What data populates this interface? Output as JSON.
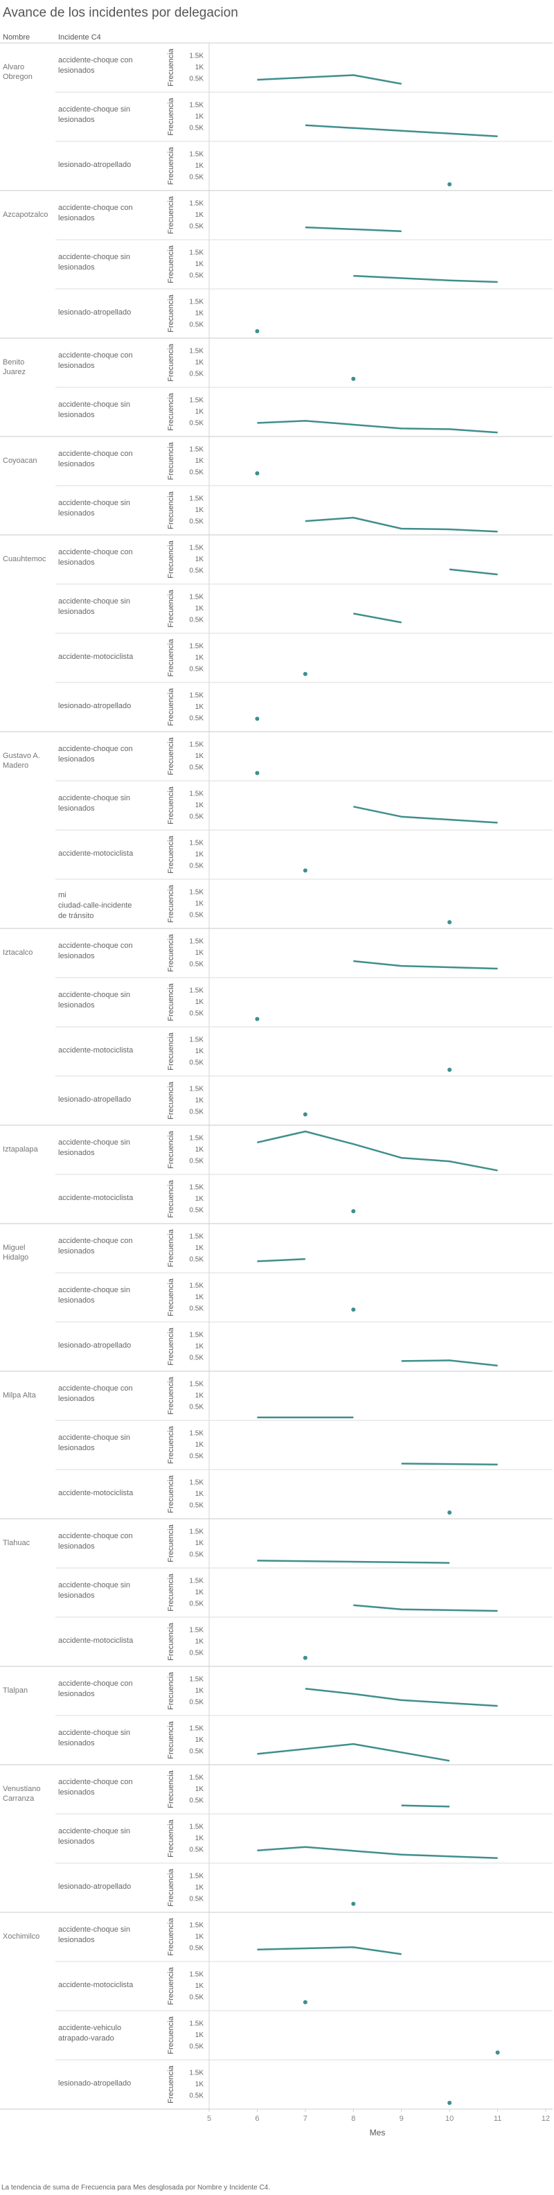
{
  "chart_data": {
    "type": "line",
    "title": "Avance de los incidentes por delegacion",
    "footnote": "La tendencia de suma de Frecuencia para Mes desglosada por Nombre y Incidente C4.",
    "column_headers": [
      "Nombre",
      "Incidente C4"
    ],
    "ylabel": "Frecuencia",
    "xlabel": "Mes",
    "x_ticks": [
      5,
      6,
      7,
      8,
      9,
      10,
      11,
      12
    ],
    "y_tick_labels": [
      "1.5K",
      "1K",
      "0.5K"
    ],
    "xlim": [
      5,
      12
    ],
    "ylim": [
      0,
      1900
    ],
    "line_color": "#3f8f8c",
    "groups": [
      {
        "name": "Alvaro Obregon",
        "rows": [
          {
            "incident": "accidente-choque con lesionados",
            "points": [
              [
                6,
                420
              ],
              [
                8,
                620
              ],
              [
                9,
                240
              ]
            ]
          },
          {
            "incident": "accidente-choque sin lesionados",
            "points": [
              [
                7,
                580
              ],
              [
                11,
                100
              ]
            ]
          },
          {
            "incident": "lesionado-atropellado",
            "points": [
              [
                10,
                150
              ]
            ]
          }
        ]
      },
      {
        "name": "Azcapotzalco",
        "rows": [
          {
            "incident": "accidente-choque con lesionados",
            "points": [
              [
                7,
                420
              ],
              [
                9,
                250
              ]
            ]
          },
          {
            "incident": "accidente-choque sin lesionados",
            "points": [
              [
                8,
                450
              ],
              [
                10,
                250
              ],
              [
                11,
                180
              ]
            ]
          },
          {
            "incident": "lesionado-atropellado",
            "points": [
              [
                6,
                180
              ]
            ]
          }
        ]
      },
      {
        "name": "Benito Juarez",
        "rows": [
          {
            "incident": "accidente-choque con lesionados",
            "points": [
              [
                8,
                250
              ]
            ]
          },
          {
            "incident": "accidente-choque sin lesionados",
            "points": [
              [
                6,
                470
              ],
              [
                7,
                560
              ],
              [
                9,
                230
              ],
              [
                10,
                200
              ],
              [
                11,
                50
              ]
            ]
          }
        ]
      },
      {
        "name": "Coyoacan",
        "rows": [
          {
            "incident": "accidente-choque con lesionados",
            "points": [
              [
                6,
                420
              ]
            ]
          },
          {
            "incident": "accidente-choque sin lesionados",
            "points": [
              [
                7,
                480
              ],
              [
                8,
                630
              ],
              [
                9,
                150
              ],
              [
                10,
                120
              ],
              [
                11,
                20
              ]
            ]
          }
        ]
      },
      {
        "name": "Cuauhtemoc",
        "rows": [
          {
            "incident": "accidente-choque con lesionados",
            "points": [
              [
                10,
                520
              ],
              [
                11,
                300
              ]
            ]
          },
          {
            "incident": "accidente-choque sin lesionados",
            "points": [
              [
                8,
                740
              ],
              [
                9,
                350
              ]
            ]
          },
          {
            "incident": "accidente-motociclista",
            "points": [
              [
                7,
                250
              ]
            ]
          },
          {
            "incident": "lesionado-atropellado",
            "points": [
              [
                6,
                440
              ]
            ]
          }
        ]
      },
      {
        "name": "Gustavo A. Madero",
        "rows": [
          {
            "incident": "accidente-choque con lesionados",
            "points": [
              [
                6,
                220
              ]
            ]
          },
          {
            "incident": "accidente-choque sin lesionados",
            "points": [
              [
                8,
                900
              ],
              [
                9,
                460
              ],
              [
                11,
                200
              ]
            ]
          },
          {
            "incident": "accidente-motociclista",
            "points": [
              [
                7,
                260
              ]
            ]
          },
          {
            "incident": "mi ciudad-calle-incidente de tránsito",
            "points": [
              [
                10,
                150
              ]
            ]
          }
        ]
      },
      {
        "name": "Iztacalco",
        "rows": [
          {
            "incident": "accidente-choque con lesionados",
            "points": [
              [
                8,
                600
              ],
              [
                9,
                390
              ],
              [
                11,
                270
              ]
            ]
          },
          {
            "incident": "accidente-choque sin lesionados",
            "points": [
              [
                6,
                220
              ]
            ]
          },
          {
            "incident": "accidente-motociclista",
            "points": [
              [
                10,
                150
              ]
            ]
          },
          {
            "incident": "lesionado-atropellado",
            "points": [
              [
                7,
                350
              ]
            ]
          }
        ]
      },
      {
        "name": "Iztapalapa",
        "rows": [
          {
            "incident": "accidente-choque sin lesionados",
            "points": [
              [
                6,
                1270
              ],
              [
                7,
                1750
              ],
              [
                8,
                1200
              ],
              [
                9,
                600
              ],
              [
                10,
                450
              ],
              [
                11,
                50
              ]
            ]
          },
          {
            "incident": "accidente-motociclista",
            "points": [
              [
                8,
                420
              ]
            ]
          }
        ]
      },
      {
        "name": "Miguel Hidalgo",
        "rows": [
          {
            "incident": "accidente-choque con lesionados",
            "points": [
              [
                6,
                380
              ],
              [
                7,
                480
              ]
            ]
          },
          {
            "incident": "accidente-choque sin lesionados",
            "points": [
              [
                8,
                420
              ]
            ]
          },
          {
            "incident": "lesionado-atropellado",
            "points": [
              [
                9,
                320
              ],
              [
                10,
                350
              ],
              [
                11,
                120
              ]
            ]
          }
        ]
      },
      {
        "name": "Milpa Alta",
        "rows": [
          {
            "incident": "accidente-choque con lesionados",
            "points": [
              [
                6,
                10
              ],
              [
                8,
                10
              ]
            ]
          },
          {
            "incident": "accidente-choque sin lesionados",
            "points": [
              [
                9,
                140
              ],
              [
                11,
                100
              ]
            ]
          },
          {
            "incident": "accidente-motociclista",
            "points": [
              [
                10,
                150
              ]
            ]
          }
        ]
      },
      {
        "name": "Tlahuac",
        "rows": [
          {
            "incident": "accidente-choque con lesionados",
            "points": [
              [
                6,
                200
              ],
              [
                10,
                100
              ]
            ]
          },
          {
            "incident": "accidente-choque sin lesionados",
            "points": [
              [
                8,
                400
              ],
              [
                9,
                220
              ],
              [
                11,
                150
              ]
            ]
          },
          {
            "incident": "accidente-motociclista",
            "points": [
              [
                7,
                250
              ]
            ]
          }
        ]
      },
      {
        "name": "Tlalpan",
        "rows": [
          {
            "incident": "accidente-choque con lesionados",
            "points": [
              [
                7,
                1050
              ],
              [
                8,
                820
              ],
              [
                9,
                550
              ],
              [
                11,
                300
              ]
            ]
          },
          {
            "incident": "accidente-choque sin lesionados",
            "points": [
              [
                6,
                350
              ],
              [
                8,
                780
              ],
              [
                10,
                50
              ]
            ]
          }
        ]
      },
      {
        "name": "Venustiano Carranza",
        "rows": [
          {
            "incident": "accidente-choque con lesionados",
            "points": [
              [
                9,
                250
              ],
              [
                10,
                200
              ]
            ]
          },
          {
            "incident": "accidente-choque sin lesionados",
            "points": [
              [
                6,
                430
              ],
              [
                7,
                580
              ],
              [
                9,
                250
              ],
              [
                11,
                100
              ]
            ]
          },
          {
            "incident": "lesionado-atropellado",
            "points": [
              [
                8,
                250
              ]
            ]
          }
        ]
      },
      {
        "name": "Xochimilco",
        "rows": [
          {
            "incident": "accidente-choque sin lesionados",
            "points": [
              [
                6,
                400
              ],
              [
                8,
                500
              ],
              [
                9,
                200
              ]
            ]
          },
          {
            "incident": "accidente-motociclista",
            "points": [
              [
                7,
                250
              ]
            ]
          },
          {
            "incident": "accidente-vehiculo atrapado-varado",
            "points": [
              [
                11,
                200
              ]
            ]
          },
          {
            "incident": "lesionado-atropellado",
            "points": [
              [
                10,
                150
              ]
            ]
          }
        ]
      }
    ]
  }
}
